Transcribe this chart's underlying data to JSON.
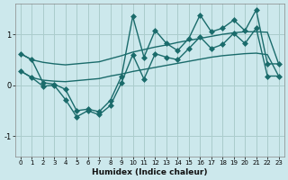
{
  "xlabel": "Humidex (Indice chaleur)",
  "bg_color": "#cce8ec",
  "grid_color": "#aacccc",
  "line_color": "#1a6b6b",
  "xlim": [
    -0.5,
    23.5
  ],
  "ylim": [
    -1.4,
    1.6
  ],
  "yticks": [
    -1,
    0,
    1
  ],
  "xticks": [
    0,
    1,
    2,
    3,
    4,
    5,
    6,
    7,
    8,
    9,
    10,
    11,
    12,
    13,
    14,
    15,
    16,
    17,
    18,
    19,
    20,
    21,
    22,
    23
  ],
  "upper_band": {
    "x": [
      0,
      1,
      2,
      3,
      4,
      5,
      6,
      7,
      8,
      9,
      10,
      11,
      12,
      13,
      14,
      15,
      16,
      17,
      18,
      19,
      20,
      21,
      22,
      23
    ],
    "y": [
      0.62,
      0.5,
      0.45,
      0.42,
      0.4,
      0.42,
      0.44,
      0.46,
      0.52,
      0.58,
      0.65,
      0.7,
      0.75,
      0.79,
      0.84,
      0.88,
      0.92,
      0.96,
      1.0,
      1.03,
      1.05,
      1.05,
      1.04,
      0.42
    ]
  },
  "lower_band": {
    "x": [
      0,
      1,
      2,
      3,
      4,
      5,
      6,
      7,
      8,
      9,
      10,
      11,
      12,
      13,
      14,
      15,
      16,
      17,
      18,
      19,
      20,
      21,
      22,
      23
    ],
    "y": [
      0.28,
      0.15,
      0.1,
      0.08,
      0.07,
      0.09,
      0.11,
      0.13,
      0.18,
      0.22,
      0.27,
      0.31,
      0.35,
      0.39,
      0.43,
      0.47,
      0.51,
      0.55,
      0.58,
      0.6,
      0.62,
      0.63,
      0.6,
      0.18
    ]
  },
  "main_line": {
    "x": [
      0,
      1,
      2,
      3,
      4,
      5,
      6,
      7,
      8,
      9,
      10,
      11,
      12,
      13,
      14,
      15,
      16,
      17,
      18,
      19,
      20,
      21,
      22,
      23
    ],
    "y": [
      0.62,
      0.5,
      0.05,
      0.02,
      -0.08,
      -0.5,
      -0.47,
      -0.52,
      -0.3,
      0.18,
      1.35,
      0.55,
      1.08,
      0.82,
      0.68,
      0.92,
      1.38,
      1.05,
      1.12,
      1.28,
      1.07,
      1.48,
      0.42,
      0.42
    ]
  },
  "lower_line": {
    "x": [
      0,
      1,
      2,
      3,
      4,
      5,
      6,
      7,
      8,
      9,
      10,
      11,
      12,
      13,
      14,
      15,
      16,
      17,
      18,
      19,
      20,
      21,
      22,
      23
    ],
    "y": [
      0.28,
      0.15,
      -0.02,
      0.0,
      -0.28,
      -0.62,
      -0.5,
      -0.58,
      -0.4,
      0.05,
      0.6,
      0.12,
      0.62,
      0.55,
      0.5,
      0.72,
      0.95,
      0.72,
      0.8,
      1.02,
      0.82,
      1.12,
      0.18,
      0.18
    ]
  },
  "linewidth": 1.0,
  "marker": "D",
  "marker_size": 3.0
}
